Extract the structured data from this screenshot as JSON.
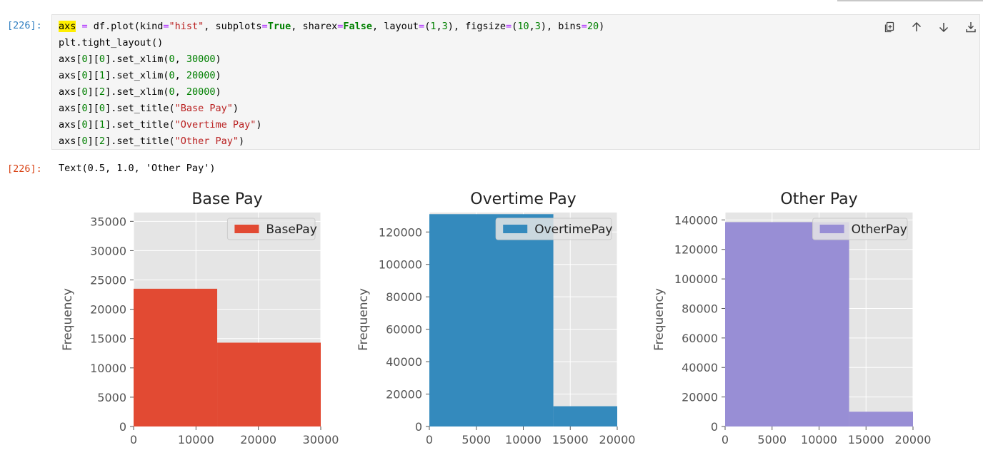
{
  "input_cell": {
    "prompt": "[226]:",
    "lines": [
      [
        {
          "t": "axs",
          "c": "hl"
        },
        {
          "t": " "
        },
        {
          "t": "=",
          "c": "op"
        },
        {
          "t": " df.plot(kind"
        },
        {
          "t": "=",
          "c": "op"
        },
        {
          "t": "\"hist\"",
          "c": "str"
        },
        {
          "t": ", subplots"
        },
        {
          "t": "=",
          "c": "op"
        },
        {
          "t": "True",
          "c": "kw"
        },
        {
          "t": ", sharex"
        },
        {
          "t": "=",
          "c": "op"
        },
        {
          "t": "False",
          "c": "kw"
        },
        {
          "t": ", layout"
        },
        {
          "t": "=",
          "c": "op"
        },
        {
          "t": "("
        },
        {
          "t": "1",
          "c": "num"
        },
        {
          "t": ","
        },
        {
          "t": "3",
          "c": "num"
        },
        {
          "t": "), figsize"
        },
        {
          "t": "=",
          "c": "op"
        },
        {
          "t": "("
        },
        {
          "t": "10",
          "c": "num"
        },
        {
          "t": ","
        },
        {
          "t": "3",
          "c": "num"
        },
        {
          "t": "), bins"
        },
        {
          "t": "=",
          "c": "op"
        },
        {
          "t": "20",
          "c": "num"
        },
        {
          "t": ")"
        }
      ],
      [
        {
          "t": "plt.tight_layout()"
        }
      ],
      [
        {
          "t": "axs["
        },
        {
          "t": "0",
          "c": "num"
        },
        {
          "t": "]["
        },
        {
          "t": "0",
          "c": "num"
        },
        {
          "t": "].set_xlim("
        },
        {
          "t": "0",
          "c": "num"
        },
        {
          "t": ", "
        },
        {
          "t": "30000",
          "c": "num"
        },
        {
          "t": ")"
        }
      ],
      [
        {
          "t": "axs["
        },
        {
          "t": "0",
          "c": "num"
        },
        {
          "t": "]["
        },
        {
          "t": "1",
          "c": "num"
        },
        {
          "t": "].set_xlim("
        },
        {
          "t": "0",
          "c": "num"
        },
        {
          "t": ", "
        },
        {
          "t": "20000",
          "c": "num"
        },
        {
          "t": ")"
        }
      ],
      [
        {
          "t": "axs["
        },
        {
          "t": "0",
          "c": "num"
        },
        {
          "t": "]["
        },
        {
          "t": "2",
          "c": "num"
        },
        {
          "t": "].set_xlim("
        },
        {
          "t": "0",
          "c": "num"
        },
        {
          "t": ", "
        },
        {
          "t": "20000",
          "c": "num"
        },
        {
          "t": ")"
        }
      ],
      [
        {
          "t": "axs["
        },
        {
          "t": "0",
          "c": "num"
        },
        {
          "t": "]["
        },
        {
          "t": "0",
          "c": "num"
        },
        {
          "t": "].set_title("
        },
        {
          "t": "\"Base Pay\"",
          "c": "str"
        },
        {
          "t": ")"
        }
      ],
      [
        {
          "t": "axs["
        },
        {
          "t": "0",
          "c": "num"
        },
        {
          "t": "]["
        },
        {
          "t": "1",
          "c": "num"
        },
        {
          "t": "].set_title("
        },
        {
          "t": "\"Overtime Pay\"",
          "c": "str"
        },
        {
          "t": ")"
        }
      ],
      [
        {
          "t": "axs["
        },
        {
          "t": "0",
          "c": "num"
        },
        {
          "t": "]["
        },
        {
          "t": "2",
          "c": "num"
        },
        {
          "t": "].set_title("
        },
        {
          "t": "\"Other Pay\"",
          "c": "str"
        },
        {
          "t": ")"
        }
      ]
    ]
  },
  "toolbar": [
    "copy-icon",
    "arrow-up-icon",
    "arrow-down-icon",
    "insert-below-icon"
  ],
  "output_cell": {
    "prompt": "[226]:",
    "text": "Text(0.5, 1.0, 'Other Pay')"
  },
  "chart_data": [
    {
      "type": "bar",
      "title": "Base Pay",
      "ylabel": "Frequency",
      "legend": "BasePay",
      "legend_position": "top-right",
      "color": "#e24a33",
      "grid": true,
      "xlim": [
        0,
        30000
      ],
      "ylim": [
        0,
        36500
      ],
      "xticks": [
        0,
        10000,
        20000,
        30000
      ],
      "yticks": [
        0,
        5000,
        10000,
        15000,
        20000,
        25000,
        30000,
        35000
      ],
      "bins": [
        {
          "x0": 0,
          "x1": 13400,
          "value": 23500
        },
        {
          "x0": 13400,
          "x1": 30000,
          "value": 14300
        }
      ]
    },
    {
      "type": "bar",
      "title": "Overtime Pay",
      "ylabel": "Frequency",
      "legend": "OvertimePay",
      "legend_position": "top-right",
      "color": "#348abd",
      "grid": true,
      "xlim": [
        0,
        20000
      ],
      "ylim": [
        0,
        132000
      ],
      "xticks": [
        0,
        5000,
        10000,
        15000,
        20000
      ],
      "yticks": [
        0,
        20000,
        40000,
        60000,
        80000,
        100000,
        120000
      ],
      "bins": [
        {
          "x0": 0,
          "x1": 13200,
          "value": 131000
        },
        {
          "x0": 13200,
          "x1": 20000,
          "value": 12500
        }
      ]
    },
    {
      "type": "bar",
      "title": "Other Pay",
      "ylabel": "Frequency",
      "legend": "OtherPay",
      "legend_position": "top-right",
      "color": "#988ed5",
      "grid": true,
      "xlim": [
        0,
        20000
      ],
      "ylim": [
        0,
        145000
      ],
      "xticks": [
        0,
        5000,
        10000,
        15000,
        20000
      ],
      "yticks": [
        0,
        20000,
        40000,
        60000,
        80000,
        100000,
        120000,
        140000
      ],
      "bins": [
        {
          "x0": 0,
          "x1": 13200,
          "value": 138500
        },
        {
          "x0": 13200,
          "x1": 20000,
          "value": 10000
        }
      ]
    }
  ]
}
